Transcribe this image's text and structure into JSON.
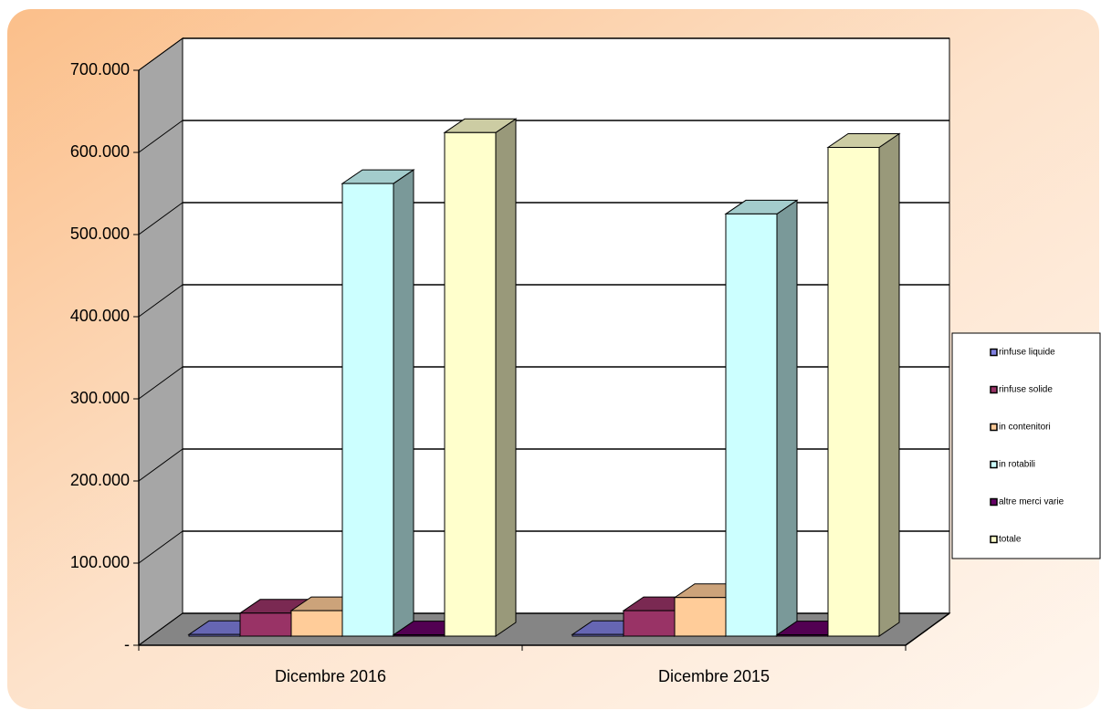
{
  "chart_data": {
    "type": "bar3d",
    "categories": [
      "Dicembre 2016",
      "Dicembre 2015"
    ],
    "series": [
      {
        "name": "rinfuse liquide",
        "color": "#8080e0",
        "values": [
          2000,
          2000
        ]
      },
      {
        "name": "rinfuse solide",
        "color": "#993366",
        "values": [
          28000,
          31000
        ]
      },
      {
        "name": "in contenitori",
        "color": "#ffcc99",
        "values": [
          31000,
          47000
        ]
      },
      {
        "name": "in rotabili",
        "color": "#ccffff",
        "values": [
          551000,
          514000
        ]
      },
      {
        "name": "altre merci varie",
        "color": "#660066",
        "values": [
          1500,
          1500
        ]
      },
      {
        "name": "totale",
        "color": "#ffffcc",
        "values": [
          613000,
          595000
        ]
      }
    ],
    "ylim": [
      0,
      700000
    ],
    "yticks": [
      {
        "value": 0,
        "label": "-"
      },
      {
        "value": 100000,
        "label": "100.000"
      },
      {
        "value": 200000,
        "label": "200.000"
      },
      {
        "value": 300000,
        "label": "300.000"
      },
      {
        "value": 400000,
        "label": "400.000"
      },
      {
        "value": 500000,
        "label": "500.000"
      },
      {
        "value": 600000,
        "label": "600.000"
      },
      {
        "value": 700000,
        "label": "700.000"
      }
    ],
    "grid": true,
    "legend": "right"
  }
}
